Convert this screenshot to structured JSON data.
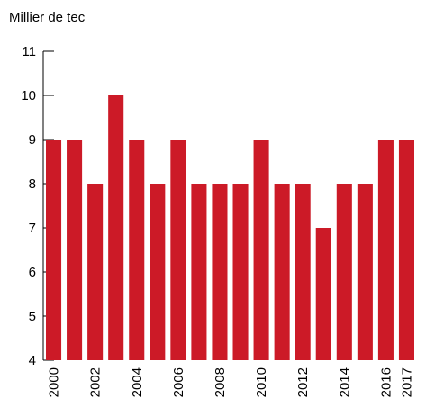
{
  "chart_data": {
    "type": "bar",
    "unit_label": "Millier de tec",
    "title": "",
    "xlabel": "",
    "ylabel": "Millier de tec",
    "categories": [
      "2000",
      "2001",
      "2002",
      "2003",
      "2004",
      "2005",
      "2006",
      "2007",
      "2008",
      "2009",
      "2010",
      "2011",
      "2012",
      "2013",
      "2014",
      "2015",
      "2016",
      "2017"
    ],
    "x_tick_labels": [
      "2000",
      "2002",
      "2004",
      "2006",
      "2008",
      "2010",
      "2012",
      "2014",
      "2016",
      "2017"
    ],
    "values": [
      9,
      9,
      8,
      10,
      9,
      8,
      9,
      8,
      8,
      8,
      9,
      8,
      8,
      7,
      8,
      8,
      9,
      9
    ],
    "y_ticks": [
      4,
      5,
      6,
      7,
      8,
      9,
      10,
      11
    ],
    "ylim": [
      4,
      11
    ],
    "grid": false,
    "legend": "none",
    "bar_color": "#cc1a27",
    "axis_color": "#000000"
  }
}
